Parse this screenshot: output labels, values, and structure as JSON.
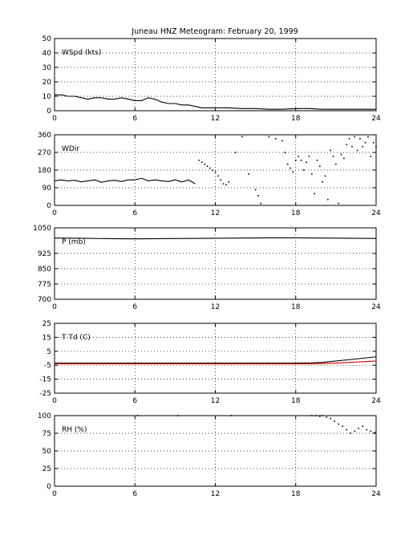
{
  "chart_data": {
    "title": "Juneau HNZ Meteogram:  February 20, 1999",
    "panels": [
      {
        "label": "WSpd (kts)",
        "type": "line",
        "ylim": [
          0,
          50
        ],
        "yticks": [
          "0",
          "10",
          "20",
          "30",
          "40",
          "50"
        ],
        "xlim": [
          0,
          24
        ],
        "xticks": [
          "0",
          "6",
          "12",
          "18",
          "24"
        ],
        "grid": true,
        "series": [
          {
            "color": "#000000",
            "style": "line",
            "x": [
              0,
              0.5,
              1,
              1.5,
              2,
              2.5,
              3,
              3.5,
              4,
              4.5,
              5,
              5.5,
              6,
              6.5,
              7,
              7.5,
              8,
              8.5,
              9,
              9.5,
              10,
              10.5,
              11,
              11.5,
              12,
              13,
              14,
              15,
              16,
              17,
              18,
              19,
              20,
              21,
              22,
              23,
              24
            ],
            "y": [
              11,
              11,
              10,
              10,
              9,
              8,
              9,
              9,
              8,
              8,
              9,
              8,
              7,
              7,
              9,
              8,
              6,
              5,
              5,
              4,
              4,
              3,
              2,
              2,
              2,
              2,
              1.5,
              1.5,
              1,
              1,
              1.5,
              1.5,
              1,
              1,
              1,
              1,
              1
            ]
          }
        ]
      },
      {
        "label": "WDir",
        "type": "scatter",
        "ylim": [
          0,
          360
        ],
        "yticks": [
          "0",
          "90",
          "180",
          "270",
          "360"
        ],
        "xlim": [
          0,
          24
        ],
        "xticks": [
          "0",
          "6",
          "12",
          "18",
          "24"
        ],
        "grid": true,
        "series": [
          {
            "color": "#000000",
            "style": "line",
            "x": [
              0,
              0.5,
              1,
              1.5,
              2,
              2.5,
              3,
              3.5,
              4,
              4.5,
              5,
              5.5,
              6,
              6.5,
              7,
              7.5,
              8,
              8.5,
              9,
              9.5,
              10,
              10.5
            ],
            "y": [
              125,
              130,
              125,
              128,
              120,
              125,
              130,
              118,
              125,
              128,
              122,
              130,
              130,
              138,
              125,
              130,
              125,
              122,
              130,
              120,
              130,
              110
            ]
          },
          {
            "color": "#000000",
            "style": "points",
            "x": [
              10.8,
              11,
              11.2,
              11.4,
              11.6,
              11.8,
              12,
              12.2,
              12.4,
              12.6,
              12.8,
              13,
              13.5,
              14,
              14.5,
              15,
              15.2,
              15.4,
              16,
              16.5,
              17,
              17.2,
              17.4,
              17.6,
              17.8,
              18,
              18.2,
              18.4,
              18.6,
              18.8,
              19,
              19.2,
              19.4,
              19.6,
              19.8,
              20,
              20.2,
              20.4,
              20.6,
              20.8,
              21,
              21.2,
              21.4,
              21.6,
              21.8,
              22,
              22.2,
              22.4,
              22.6,
              22.8,
              23,
              23.2,
              23.4,
              23.6,
              23.8,
              24
            ],
            "y": [
              230,
              220,
              210,
              200,
              190,
              180,
              170,
              150,
              130,
              110,
              105,
              120,
              270,
              350,
              160,
              80,
              50,
              10,
              350,
              340,
              330,
              270,
              210,
              190,
              170,
              230,
              250,
              230,
              180,
              220,
              250,
              160,
              60,
              230,
              200,
              120,
              150,
              30,
              280,
              250,
              210,
              10,
              260,
              240,
              310,
              340,
              300,
              350,
              280,
              340,
              300,
              320,
              350,
              250,
              320,
              300
            ]
          }
        ]
      },
      {
        "label": "P (mb)",
        "type": "line",
        "ylim": [
          700,
          1050
        ],
        "yticks": [
          "700",
          "775",
          "850",
          "925",
          "1050"
        ],
        "ytick_values": [
          700,
          775,
          850,
          925,
          1050
        ],
        "xlim": [
          0,
          24
        ],
        "xticks": [
          "0",
          "6",
          "12",
          "18",
          "24"
        ],
        "grid": true,
        "series": [
          {
            "color": "#000000",
            "style": "line",
            "x": [
              0,
              2,
              4,
              6,
              8,
              10,
              12,
              14,
              16,
              18,
              20,
              22,
              24
            ],
            "y": [
              1000,
              999,
              997,
              996,
              997,
              998,
              999,
              1000,
              1001,
              1001,
              1000,
              999,
              998
            ]
          }
        ]
      },
      {
        "label": "T Td (C)",
        "type": "line",
        "ylim": [
          -25,
          25
        ],
        "yticks": [
          "-25",
          "-15",
          "-5",
          "5",
          "15",
          "25"
        ],
        "xlim": [
          0,
          24
        ],
        "xticks": [
          "0",
          "6",
          "12",
          "18",
          "24"
        ],
        "grid": true,
        "series": [
          {
            "color": "#000000",
            "style": "line",
            "x": [
              0,
              2,
              4,
              6,
              8,
              10,
              12,
              14,
              16,
              18,
              19,
              20,
              21,
              22,
              23,
              24
            ],
            "y": [
              -3.5,
              -3.5,
              -3.5,
              -3.5,
              -3.5,
              -3.5,
              -3.5,
              -3.5,
              -3.5,
              -3.5,
              -3.3,
              -3,
              -2,
              -1,
              0,
              1
            ]
          },
          {
            "color": "#e00000",
            "style": "line",
            "x": [
              0,
              2,
              4,
              6,
              8,
              10,
              12,
              14,
              16,
              18,
              19,
              20,
              21,
              22,
              23,
              24
            ],
            "y": [
              -4,
              -4,
              -4,
              -4,
              -4,
              -4,
              -4,
              -4,
              -4,
              -4,
              -4,
              -3.8,
              -3.5,
              -3,
              -2.5,
              -2
            ]
          }
        ]
      },
      {
        "label": "RH (%)",
        "type": "scatter",
        "ylim": [
          0,
          100
        ],
        "yticks": [
          "0",
          "25",
          "50",
          "75",
          "100"
        ],
        "xlim": [
          0,
          24
        ],
        "xticks": [
          "0",
          "6",
          "12",
          "18",
          "24"
        ],
        "grid": true,
        "series": [
          {
            "color": "#000000",
            "style": "points",
            "x": [
              6.2,
              9.2,
              13.2,
              19.2,
              19.5,
              19.8,
              20,
              20.3,
              20.6,
              20.9,
              21.2,
              21.5,
              21.8,
              22.1,
              22.4,
              22.7,
              23,
              23.3,
              23.6,
              23.9
            ],
            "y": [
              100,
              100,
              100,
              100,
              100,
              99,
              100,
              98,
              96,
              92,
              88,
              85,
              80,
              75,
              78,
              82,
              85,
              80,
              78,
              76
            ]
          }
        ]
      }
    ]
  }
}
